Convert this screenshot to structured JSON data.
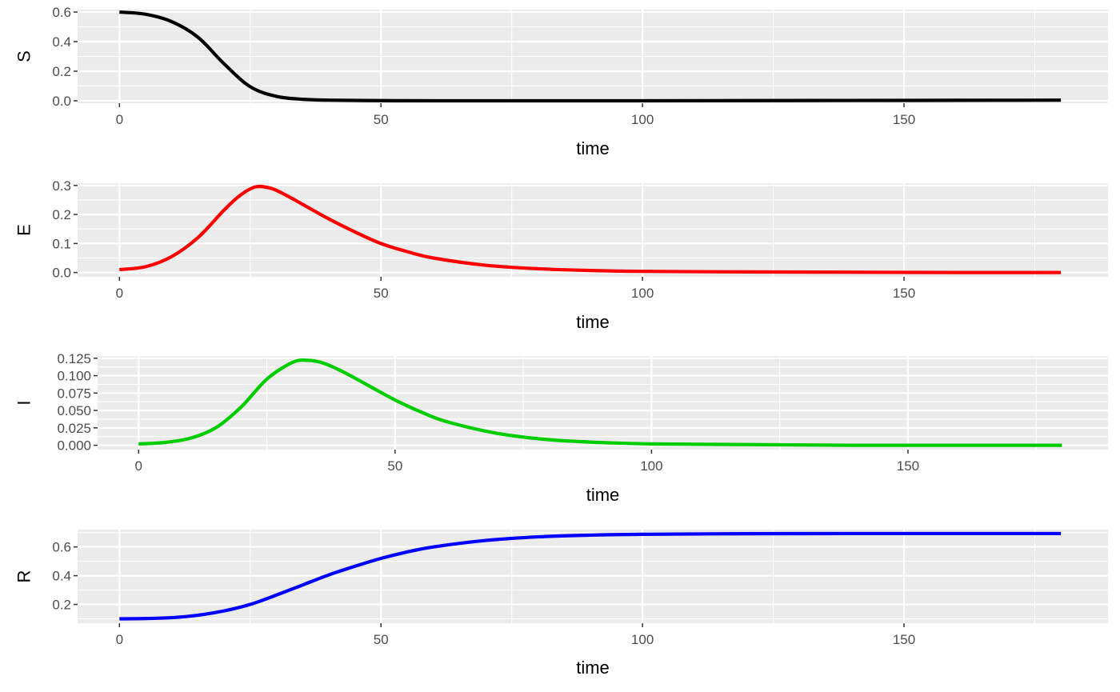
{
  "chart_data": [
    {
      "type": "line",
      "xlabel": "time",
      "ylabel": "S",
      "xlim": [
        -8,
        189
      ],
      "ylim": [
        -0.0165,
        0.6165
      ],
      "x_ticks": [
        "0",
        "50",
        "100",
        "150"
      ],
      "x_tick_values": [
        0,
        50,
        100,
        150
      ],
      "y_ticks": [
        "0.0",
        "0.2",
        "0.4",
        "0.6"
      ],
      "y_tick_values": [
        0.0,
        0.2,
        0.4,
        0.6
      ],
      "grid": true,
      "series": [
        {
          "color": "#000000",
          "x": [
            0,
            5,
            10,
            15,
            20,
            25,
            30,
            35,
            40,
            50,
            60,
            80,
            100,
            120,
            140,
            160,
            180
          ],
          "values": [
            0.6,
            0.585,
            0.535,
            0.43,
            0.25,
            0.095,
            0.03,
            0.01,
            0.004,
            0.001,
            0.0,
            0.0,
            0.0,
            0.001,
            0.002,
            0.003,
            0.004
          ]
        }
      ]
    },
    {
      "type": "line",
      "xlabel": "time",
      "ylabel": "E",
      "xlim": [
        -8,
        189
      ],
      "ylim": [
        -0.0148,
        0.3078
      ],
      "x_ticks": [
        "0",
        "50",
        "100",
        "150"
      ],
      "x_tick_values": [
        0,
        50,
        100,
        150
      ],
      "y_ticks": [
        "0.0",
        "0.1",
        "0.2",
        "0.3"
      ],
      "y_tick_values": [
        0.0,
        0.1,
        0.2,
        0.3
      ],
      "grid": true,
      "series": [
        {
          "color": "#ff0000",
          "x": [
            0,
            5,
            10,
            15,
            20,
            23,
            26,
            29,
            32,
            36,
            40,
            45,
            50,
            55,
            60,
            70,
            80,
            90,
            100,
            120,
            140,
            160,
            180
          ],
          "values": [
            0.01,
            0.02,
            0.055,
            0.12,
            0.215,
            0.265,
            0.295,
            0.29,
            0.265,
            0.225,
            0.185,
            0.14,
            0.1,
            0.072,
            0.05,
            0.025,
            0.013,
            0.007,
            0.004,
            0.002,
            0.001,
            0.0,
            0.0
          ]
        }
      ]
    },
    {
      "type": "line",
      "xlabel": "time",
      "ylabel": "I",
      "xlim": [
        -8,
        189
      ],
      "ylim": [
        -0.0062,
        0.1282
      ],
      "x_ticks": [
        "0",
        "50",
        "100",
        "150"
      ],
      "x_tick_values": [
        0,
        50,
        100,
        150
      ],
      "y_ticks": [
        "0.000",
        "0.025",
        "0.050",
        "0.075",
        "0.100",
        "0.125"
      ],
      "y_tick_values": [
        0.0,
        0.025,
        0.05,
        0.075,
        0.1,
        0.125
      ],
      "grid": true,
      "series": [
        {
          "color": "#00cd00",
          "x": [
            0,
            5,
            10,
            15,
            20,
            25,
            30,
            33,
            36,
            40,
            45,
            50,
            55,
            60,
            70,
            80,
            90,
            100,
            120,
            140,
            160,
            180
          ],
          "values": [
            0.002,
            0.004,
            0.01,
            0.025,
            0.055,
            0.095,
            0.119,
            0.122,
            0.118,
            0.105,
            0.085,
            0.065,
            0.048,
            0.034,
            0.017,
            0.008,
            0.004,
            0.002,
            0.001,
            0.0,
            0.0,
            0.0
          ]
        }
      ]
    },
    {
      "type": "line",
      "xlabel": "time",
      "ylabel": "R",
      "xlim": [
        -8,
        189
      ],
      "ylim": [
        0.0695,
        0.7205
      ],
      "x_ticks": [
        "0",
        "50",
        "100",
        "150"
      ],
      "x_tick_values": [
        0,
        50,
        100,
        150
      ],
      "y_ticks": [
        "0.2",
        "0.4",
        "0.6"
      ],
      "y_tick_values": [
        0.2,
        0.4,
        0.6
      ],
      "grid": true,
      "series": [
        {
          "color": "#0000ff",
          "x": [
            0,
            5,
            10,
            15,
            20,
            25,
            30,
            35,
            40,
            45,
            50,
            55,
            60,
            70,
            80,
            90,
            100,
            120,
            140,
            160,
            180
          ],
          "values": [
            0.1,
            0.102,
            0.108,
            0.125,
            0.155,
            0.2,
            0.265,
            0.335,
            0.405,
            0.465,
            0.52,
            0.565,
            0.6,
            0.645,
            0.67,
            0.682,
            0.688,
            0.692,
            0.693,
            0.693,
            0.693
          ]
        }
      ]
    }
  ]
}
